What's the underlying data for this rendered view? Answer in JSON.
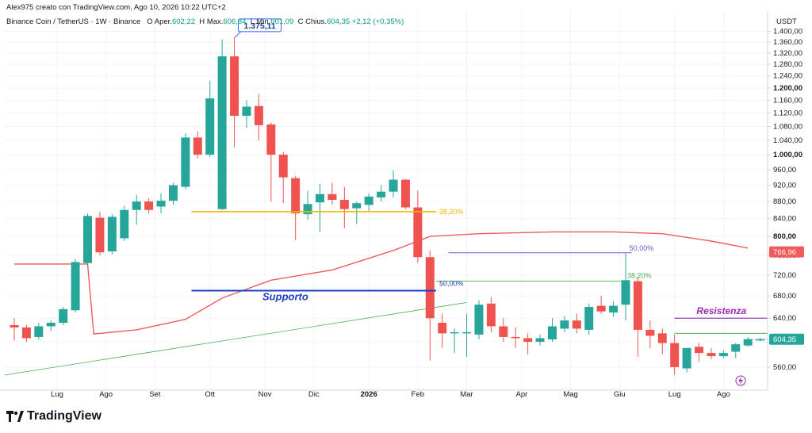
{
  "header": {
    "credit": "Alex975 creato con TradingView.com, Ago 10, 2026 10:22 UTC+2",
    "symbol": "Binance Coin / TetherUS · 1W · Binance",
    "open_label": "O",
    "open_field": "Aper.",
    "open_value": "602,22",
    "high_label": "H",
    "high_field": "Max.",
    "high_value": "606,84",
    "low_label": "L",
    "low_field": "Min.",
    "low_value": "601,09",
    "close_label": "C",
    "close_field": "Chius.",
    "close_value": "604,35",
    "change": "+2,12 (+0,35%)"
  },
  "brand": {
    "name": "TradingView"
  },
  "colors": {
    "up": "#26a69a",
    "down": "#ef5350",
    "ma": "#f15b5b",
    "support": "#1e3fbf",
    "resistance": "#8e44ad",
    "fib_orange": "#f5b800",
    "fib_purple": "#6a5acd",
    "fib_green": "#4caf50",
    "trendline": "#4caf50",
    "price_tag": "#26a69a",
    "ma_tag": "#f15b5b",
    "callout": "#2962ff"
  },
  "chart_data": {
    "type": "candlestick",
    "symbol": "BNB/USDT",
    "timeframe": "1W",
    "y_unit": "USDT",
    "y_scale": "log",
    "ylim": [
      535,
      1405
    ],
    "y_ticks": [
      560,
      600,
      640,
      680,
      720,
      760,
      800,
      840,
      880,
      920,
      960,
      1000,
      1040,
      1080,
      1120,
      1160,
      1200,
      1240,
      1280,
      1320,
      1360,
      1400
    ],
    "y_tick_labels": [
      "560,00",
      "600,00",
      "640,00",
      "680,00",
      "720,00",
      "760,00",
      "800,00",
      "840,00",
      "880,00",
      "920,00",
      "960,00",
      "1.000,00",
      "1.040,00",
      "1.080,00",
      "1.120,00",
      "1.160,00",
      "1.200,00",
      "1.240,00",
      "1.280,00",
      "1.320,00",
      "1.360,00",
      "1.400,00"
    ],
    "bold_ticks": [
      800,
      1000,
      1200
    ],
    "x_month_labels": [
      {
        "label": "Lug",
        "i": 3.5
      },
      {
        "label": "Ago",
        "i": 7.5
      },
      {
        "label": "Set",
        "i": 11.5
      },
      {
        "label": "Ott",
        "i": 16
      },
      {
        "label": "Nov",
        "i": 20.5
      },
      {
        "label": "Dic",
        "i": 24.5
      },
      {
        "label": "2026",
        "i": 29,
        "bold": true
      },
      {
        "label": "Feb",
        "i": 33
      },
      {
        "label": "Mar",
        "i": 37
      },
      {
        "label": "Apr",
        "i": 41.5
      },
      {
        "label": "Mag",
        "i": 45.5
      },
      {
        "label": "Giu",
        "i": 49.5
      },
      {
        "label": "Lug",
        "i": 54
      },
      {
        "label": "Ago",
        "i": 58
      }
    ],
    "candles": [
      {
        "o": 628,
        "h": 640,
        "l": 602,
        "c": 624
      },
      {
        "o": 624,
        "h": 628,
        "l": 600,
        "c": 606
      },
      {
        "o": 608,
        "h": 632,
        "l": 604,
        "c": 626
      },
      {
        "o": 626,
        "h": 636,
        "l": 618,
        "c": 632
      },
      {
        "o": 632,
        "h": 660,
        "l": 628,
        "c": 656
      },
      {
        "o": 654,
        "h": 752,
        "l": 650,
        "c": 746
      },
      {
        "o": 744,
        "h": 852,
        "l": 740,
        "c": 846
      },
      {
        "o": 842,
        "h": 856,
        "l": 760,
        "c": 766
      },
      {
        "o": 768,
        "h": 850,
        "l": 762,
        "c": 844
      },
      {
        "o": 796,
        "h": 870,
        "l": 790,
        "c": 860
      },
      {
        "o": 860,
        "h": 896,
        "l": 826,
        "c": 880
      },
      {
        "o": 880,
        "h": 888,
        "l": 852,
        "c": 860
      },
      {
        "o": 868,
        "h": 900,
        "l": 852,
        "c": 882
      },
      {
        "o": 882,
        "h": 926,
        "l": 872,
        "c": 920
      },
      {
        "o": 916,
        "h": 1060,
        "l": 910,
        "c": 1048
      },
      {
        "o": 1048,
        "h": 1066,
        "l": 990,
        "c": 1000
      },
      {
        "o": 1000,
        "h": 1224,
        "l": 994,
        "c": 1166
      },
      {
        "o": 862,
        "h": 1370,
        "l": 860,
        "c": 1308
      },
      {
        "o": 1308,
        "h": 1375.11,
        "l": 1020,
        "c": 1112
      },
      {
        "o": 1112,
        "h": 1160,
        "l": 1076,
        "c": 1140
      },
      {
        "o": 1142,
        "h": 1180,
        "l": 1040,
        "c": 1084
      },
      {
        "o": 1086,
        "h": 1092,
        "l": 880,
        "c": 1000
      },
      {
        "o": 1000,
        "h": 1008,
        "l": 876,
        "c": 940
      },
      {
        "o": 938,
        "h": 944,
        "l": 792,
        "c": 852
      },
      {
        "o": 850,
        "h": 906,
        "l": 838,
        "c": 874
      },
      {
        "o": 878,
        "h": 924,
        "l": 810,
        "c": 898
      },
      {
        "o": 898,
        "h": 926,
        "l": 872,
        "c": 884
      },
      {
        "o": 884,
        "h": 916,
        "l": 818,
        "c": 862
      },
      {
        "o": 864,
        "h": 880,
        "l": 828,
        "c": 876
      },
      {
        "o": 872,
        "h": 900,
        "l": 856,
        "c": 892
      },
      {
        "o": 890,
        "h": 920,
        "l": 880,
        "c": 904
      },
      {
        "o": 904,
        "h": 958,
        "l": 890,
        "c": 934
      },
      {
        "o": 934,
        "h": 936,
        "l": 862,
        "c": 866
      },
      {
        "o": 866,
        "h": 906,
        "l": 744,
        "c": 756
      },
      {
        "o": 756,
        "h": 770,
        "l": 570,
        "c": 640
      },
      {
        "o": 632,
        "h": 648,
        "l": 590,
        "c": 614
      },
      {
        "o": 614,
        "h": 622,
        "l": 582,
        "c": 616
      },
      {
        "o": 614,
        "h": 648,
        "l": 576,
        "c": 616
      },
      {
        "o": 612,
        "h": 672,
        "l": 604,
        "c": 664
      },
      {
        "o": 666,
        "h": 678,
        "l": 616,
        "c": 626
      },
      {
        "o": 626,
        "h": 640,
        "l": 600,
        "c": 608
      },
      {
        "o": 608,
        "h": 624,
        "l": 590,
        "c": 606
      },
      {
        "o": 606,
        "h": 614,
        "l": 580,
        "c": 600
      },
      {
        "o": 600,
        "h": 612,
        "l": 594,
        "c": 606
      },
      {
        "o": 604,
        "h": 640,
        "l": 600,
        "c": 626
      },
      {
        "o": 622,
        "h": 644,
        "l": 616,
        "c": 636
      },
      {
        "o": 636,
        "h": 648,
        "l": 614,
        "c": 622
      },
      {
        "o": 620,
        "h": 666,
        "l": 612,
        "c": 660
      },
      {
        "o": 662,
        "h": 680,
        "l": 648,
        "c": 652
      },
      {
        "o": 650,
        "h": 670,
        "l": 642,
        "c": 662
      },
      {
        "o": 664,
        "h": 764,
        "l": 636,
        "c": 710
      },
      {
        "o": 708,
        "h": 716,
        "l": 576,
        "c": 620
      },
      {
        "o": 620,
        "h": 636,
        "l": 590,
        "c": 610
      },
      {
        "o": 614,
        "h": 622,
        "l": 580,
        "c": 598
      },
      {
        "o": 598,
        "h": 612,
        "l": 548,
        "c": 560
      },
      {
        "o": 558,
        "h": 590,
        "l": 552,
        "c": 590
      },
      {
        "o": 592,
        "h": 598,
        "l": 568,
        "c": 582
      },
      {
        "o": 582,
        "h": 590,
        "l": 572,
        "c": 577
      },
      {
        "o": 577,
        "h": 586,
        "l": 574,
        "c": 582
      },
      {
        "o": 584,
        "h": 598,
        "l": 574,
        "c": 596
      },
      {
        "o": 594,
        "h": 608,
        "l": 592,
        "c": 604.35
      },
      {
        "o": 602.22,
        "h": 606.84,
        "l": 601.09,
        "c": 604.35
      }
    ],
    "moving_average": [
      {
        "i": 0,
        "v": 742
      },
      {
        "i": 5,
        "v": 742
      },
      {
        "i": 6,
        "v": 742
      },
      {
        "i": 6.5,
        "v": 613
      },
      {
        "i": 10,
        "v": 620
      },
      {
        "i": 14,
        "v": 638
      },
      {
        "i": 17,
        "v": 676
      },
      {
        "i": 21,
        "v": 710
      },
      {
        "i": 26,
        "v": 730
      },
      {
        "i": 31,
        "v": 770
      },
      {
        "i": 34,
        "v": 800
      },
      {
        "i": 38,
        "v": 806
      },
      {
        "i": 44,
        "v": 810
      },
      {
        "i": 49,
        "v": 810
      },
      {
        "i": 53,
        "v": 806
      },
      {
        "i": 57,
        "v": 790
      },
      {
        "i": 60,
        "v": 775
      }
    ],
    "current_price": 604.35,
    "current_price_label": "604,35",
    "ma_value": 766.96,
    "ma_value_label": "766,96",
    "annotations": [
      {
        "type": "callout",
        "text": "1.375,11",
        "value": 1375.11
      },
      {
        "type": "hline",
        "label": "38,20%",
        "value": 856,
        "color": "#f5b800"
      },
      {
        "type": "hline",
        "label": "50,00%",
        "value": 765,
        "color": "#6a5acd"
      },
      {
        "type": "hline",
        "label": "38,20%",
        "value": 708,
        "color": "#4caf50"
      },
      {
        "type": "hline",
        "label": "50,00%",
        "value": 690,
        "color": "#1e3fbf"
      },
      {
        "type": "text",
        "text": "Supporto",
        "value": 690
      },
      {
        "type": "text",
        "text": "Resistenza",
        "value": 640
      },
      {
        "type": "hline",
        "value": 640,
        "color": "#8e44ad"
      },
      {
        "type": "hline",
        "value": 614,
        "color": "#4caf50"
      }
    ]
  }
}
